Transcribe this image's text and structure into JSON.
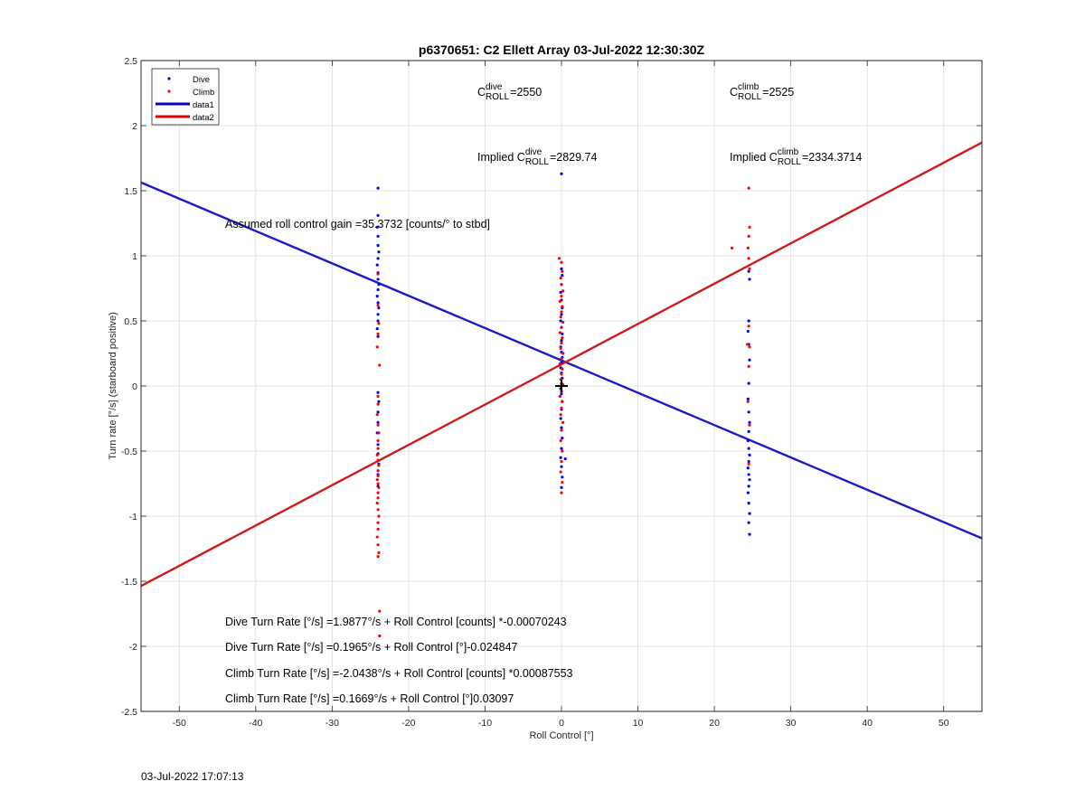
{
  "chart_data": {
    "type": "scatter",
    "title": "p6370651: C2 Ellett Array 03-Jul-2022 12:30:30Z",
    "xlabel": "Roll Control [°]",
    "ylabel": "Turn rate [°/s] (starboard positive)",
    "xlim": [
      -55,
      55
    ],
    "ylim": [
      -2.5,
      2.5
    ],
    "xticks": [
      -50,
      -40,
      -30,
      -20,
      -10,
      0,
      10,
      20,
      30,
      40,
      50
    ],
    "yticks": [
      -2.5,
      -2,
      -1.5,
      -1,
      -0.5,
      0,
      0.5,
      1,
      1.5,
      2,
      2.5
    ],
    "xtick_labels": [
      "-50",
      "-40",
      "-30",
      "-20",
      "-10",
      "0",
      "10",
      "20",
      "30",
      "40",
      "50"
    ],
    "ytick_labels": [
      "-2.5",
      "-2",
      "-1.5",
      "-1",
      "-0.5",
      "0",
      "0.5",
      "1",
      "1.5",
      "2",
      "2.5"
    ],
    "grid": true,
    "legend_position": "top-left",
    "legend": [
      {
        "name": "Dive",
        "kind": "marker",
        "color": "#0000ff"
      },
      {
        "name": "Climb",
        "kind": "marker",
        "color": "#ff0000"
      },
      {
        "name": "data1",
        "kind": "line",
        "color": "#0000cc"
      },
      {
        "name": "data2",
        "kind": "line",
        "color": "#dd0000"
      }
    ],
    "lines": [
      {
        "name": "data1",
        "color": "#1a1ac8",
        "intercept": 0.1965,
        "slope": -0.024847,
        "x": [
          -55,
          55
        ]
      },
      {
        "name": "data2",
        "color": "#d01a1a",
        "intercept": 0.1669,
        "slope": 0.03097,
        "x": [
          -55,
          55
        ]
      }
    ],
    "series": [
      {
        "name": "Dive",
        "color": "#0000ff",
        "points": [
          [
            -24,
            1.52
          ],
          [
            -24,
            1.31
          ],
          [
            -24.1,
            1.22
          ],
          [
            -24,
            1.15
          ],
          [
            -24,
            1.08
          ],
          [
            -23.9,
            1.03
          ],
          [
            -24,
            0.98
          ],
          [
            -24.1,
            0.93
          ],
          [
            -24,
            0.87
          ],
          [
            -24,
            0.82
          ],
          [
            -23.9,
            0.78
          ],
          [
            -24,
            0.74
          ],
          [
            -24.1,
            0.69
          ],
          [
            -24,
            0.64
          ],
          [
            -23.9,
            0.6
          ],
          [
            -24,
            0.55
          ],
          [
            -24,
            0.5
          ],
          [
            -24.1,
            0.44
          ],
          [
            -24,
            0.38
          ],
          [
            -24,
            -0.05
          ],
          [
            -23.9,
            -0.12
          ],
          [
            -24,
            -0.2
          ],
          [
            -24,
            -0.28
          ],
          [
            -24.1,
            -0.36
          ],
          [
            -24,
            -0.45
          ],
          [
            -24,
            -0.52
          ],
          [
            -23.9,
            -0.6
          ],
          [
            -24,
            -0.68
          ],
          [
            -24,
            -0.77
          ],
          [
            0,
            1.63
          ],
          [
            0,
            0.9
          ],
          [
            0.1,
            0.85
          ],
          [
            0,
            0.78
          ],
          [
            -0.1,
            0.72
          ],
          [
            0,
            0.66
          ],
          [
            0.1,
            0.6
          ],
          [
            0,
            0.55
          ],
          [
            -0.1,
            0.5
          ],
          [
            0,
            0.45
          ],
          [
            0.1,
            0.4
          ],
          [
            0,
            0.35
          ],
          [
            -0.1,
            0.3
          ],
          [
            0,
            0.26
          ],
          [
            0.1,
            0.22
          ],
          [
            0,
            0.18
          ],
          [
            -0.1,
            0.14
          ],
          [
            0,
            0.1
          ],
          [
            0.1,
            0.06
          ],
          [
            0,
            0.02
          ],
          [
            -0.1,
            -0.02
          ],
          [
            0,
            -0.06
          ],
          [
            0.1,
            -0.12
          ],
          [
            0,
            -0.18
          ],
          [
            -0.1,
            -0.25
          ],
          [
            0,
            -0.32
          ],
          [
            0.1,
            -0.4
          ],
          [
            0,
            -0.48
          ],
          [
            -0.1,
            -0.55
          ],
          [
            0,
            -0.62
          ],
          [
            0.1,
            -0.7
          ],
          [
            0,
            -0.78
          ],
          [
            0.5,
            -0.56
          ],
          [
            24.5,
            0.88
          ],
          [
            24.6,
            0.82
          ],
          [
            24.5,
            0.5
          ],
          [
            24.4,
            0.42
          ],
          [
            24.5,
            0.32
          ],
          [
            24.6,
            0.2
          ],
          [
            24.5,
            0.02
          ],
          [
            24.4,
            -0.1
          ],
          [
            24.5,
            -0.2
          ],
          [
            24.6,
            -0.28
          ],
          [
            24.5,
            -0.35
          ],
          [
            24.4,
            -0.42
          ],
          [
            24.5,
            -0.48
          ],
          [
            24.6,
            -0.53
          ],
          [
            24.5,
            -0.58
          ],
          [
            24.4,
            -0.63
          ],
          [
            24.5,
            -0.68
          ],
          [
            24.6,
            -0.72
          ],
          [
            24.5,
            -0.77
          ],
          [
            24.4,
            -0.82
          ],
          [
            24.5,
            -0.9
          ],
          [
            24.6,
            -0.98
          ],
          [
            24.5,
            -1.05
          ],
          [
            24.6,
            -1.14
          ]
        ]
      },
      {
        "name": "Climb",
        "color": "#ff0000",
        "points": [
          [
            -24,
            0.86
          ],
          [
            -24,
            0.62
          ],
          [
            -23.9,
            0.48
          ],
          [
            -24,
            0.4
          ],
          [
            -24.1,
            0.3
          ],
          [
            -23.8,
            0.16
          ],
          [
            -24,
            -0.08
          ],
          [
            -24,
            -0.14
          ],
          [
            -24.1,
            -0.22
          ],
          [
            -24,
            -0.3
          ],
          [
            -23.9,
            -0.36
          ],
          [
            -24,
            -0.42
          ],
          [
            -24,
            -0.48
          ],
          [
            -24.1,
            -0.53
          ],
          [
            -24,
            -0.57
          ],
          [
            -23.9,
            -0.61
          ],
          [
            -24,
            -0.65
          ],
          [
            -24,
            -0.69
          ],
          [
            -24.1,
            -0.72
          ],
          [
            -24,
            -0.75
          ],
          [
            -23.9,
            -0.78
          ],
          [
            -24,
            -0.82
          ],
          [
            -24,
            -0.86
          ],
          [
            -24.1,
            -0.9
          ],
          [
            -24,
            -0.95
          ],
          [
            -23.9,
            -1.0
          ],
          [
            -24,
            -1.05
          ],
          [
            -24,
            -1.1
          ],
          [
            -24.1,
            -1.16
          ],
          [
            -24,
            -1.22
          ],
          [
            -23.9,
            -1.28
          ],
          [
            -24,
            -1.31
          ],
          [
            -23.8,
            -1.73
          ],
          [
            -23.8,
            -1.92
          ],
          [
            -0.3,
            0.98
          ],
          [
            0,
            0.95
          ],
          [
            0.1,
            0.88
          ],
          [
            -0.1,
            0.83
          ],
          [
            0,
            0.78
          ],
          [
            0.2,
            0.73
          ],
          [
            0,
            0.69
          ],
          [
            -0.2,
            0.65
          ],
          [
            0.1,
            0.61
          ],
          [
            0,
            0.57
          ],
          [
            -0.1,
            0.53
          ],
          [
            0.2,
            0.49
          ],
          [
            0,
            0.45
          ],
          [
            -0.2,
            0.41
          ],
          [
            0.1,
            0.37
          ],
          [
            0,
            0.33
          ],
          [
            -0.1,
            0.29
          ],
          [
            0.2,
            0.25
          ],
          [
            0,
            0.21
          ],
          [
            -0.2,
            0.17
          ],
          [
            0.1,
            0.13
          ],
          [
            0,
            0.09
          ],
          [
            -0.1,
            0.05
          ],
          [
            0.2,
            0.01
          ],
          [
            0,
            -0.04
          ],
          [
            -0.2,
            -0.08
          ],
          [
            0.1,
            -0.12
          ],
          [
            0,
            -0.17
          ],
          [
            -0.1,
            -0.22
          ],
          [
            0.2,
            -0.28
          ],
          [
            0,
            -0.34
          ],
          [
            -0.1,
            -0.42
          ],
          [
            0.1,
            -0.5
          ],
          [
            0,
            -0.58
          ],
          [
            -0.1,
            -0.66
          ],
          [
            0.1,
            -0.74
          ],
          [
            0,
            -0.82
          ],
          [
            22.3,
            1.06
          ],
          [
            24.5,
            1.52
          ],
          [
            24.6,
            1.22
          ],
          [
            24.5,
            1.15
          ],
          [
            24.4,
            1.06
          ],
          [
            24.5,
            0.98
          ],
          [
            24.6,
            0.9
          ],
          [
            24.5,
            0.46
          ],
          [
            24.3,
            0.32
          ],
          [
            24.6,
            0.3
          ],
          [
            24.5,
            0.15
          ],
          [
            24.4,
            -0.12
          ],
          [
            24.6,
            -0.3
          ],
          [
            24.5,
            -0.6
          ]
        ]
      }
    ],
    "marker": {
      "x": 0,
      "y": 0,
      "symbol": "+",
      "color": "#000000"
    },
    "annotations": [
      {
        "id": "cdive",
        "base": "C",
        "sup": "dive",
        "sub": "ROLL",
        "value": "=2550"
      },
      {
        "id": "cclimb",
        "base": "C",
        "sup": "climb",
        "sub": "ROLL",
        "value": "=2525"
      },
      {
        "id": "idive",
        "prefix": "Implied ",
        "base": "C",
        "sup": "dive",
        "sub": "ROLL",
        "value": "=2829.74"
      },
      {
        "id": "iclimb",
        "prefix": "Implied ",
        "base": "C",
        "sup": "climb",
        "sub": "ROLL",
        "value": "=2334.3714"
      }
    ],
    "gain_text": "Assumed roll control gain =35.3732 [counts/° to stbd]",
    "equations": [
      "Dive Turn Rate [°/s] =1.9877°/s + Roll Control [counts] *-0.00070243",
      "Dive Turn Rate [°/s] =0.1965°/s + Roll Control [°]-0.024847",
      "Climb Turn Rate [°/s] =-2.0438°/s + Roll Control [counts] *0.00087553",
      "Climb Turn Rate [°/s] =0.1669°/s + Roll Control [°]0.03097"
    ]
  },
  "footer": {
    "timestamp": "03-Jul-2022 17:07:13"
  }
}
